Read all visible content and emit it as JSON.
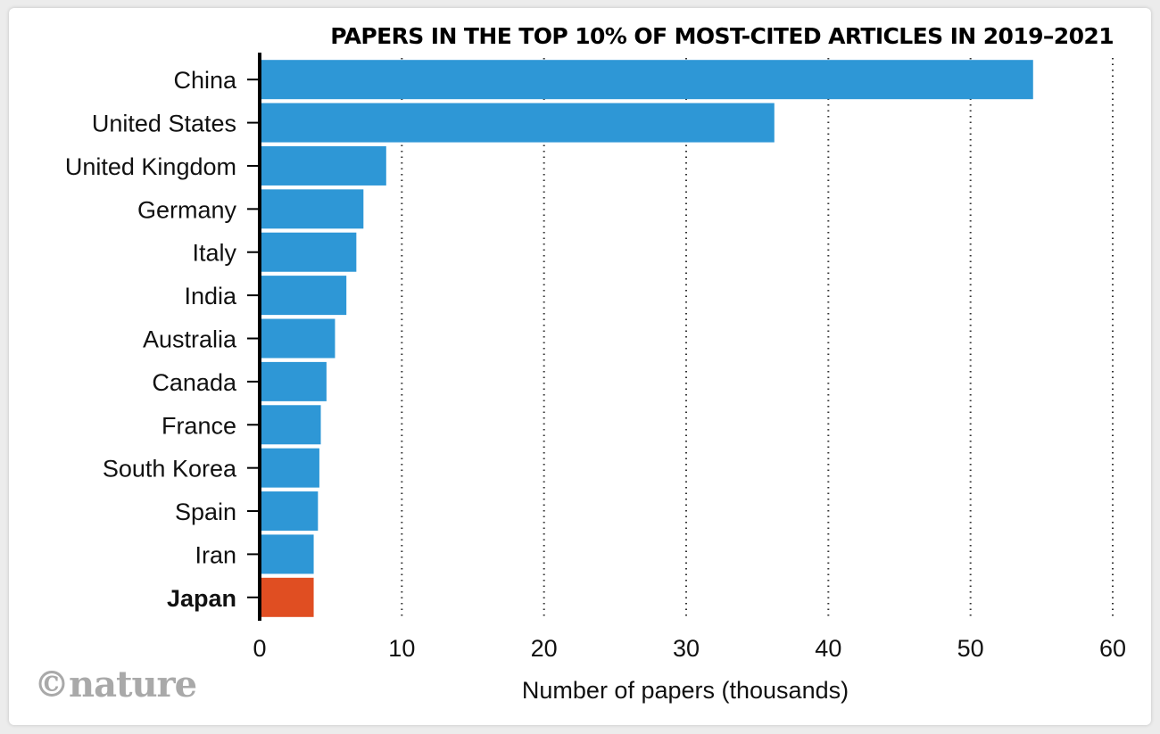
{
  "source_logo": "©nature",
  "chart_data": {
    "type": "bar",
    "orientation": "horizontal",
    "title": "PAPERS IN THE TOP 10% OF MOST-CITED ARTICLES IN 2019–2021",
    "xlabel": "Number of papers (thousands)",
    "ylabel": "",
    "xlim": [
      0,
      60
    ],
    "xticks": [
      0,
      10,
      20,
      30,
      40,
      50,
      60
    ],
    "grid": "vertical dotted",
    "categories": [
      "China",
      "United States",
      "United Kingdom",
      "Germany",
      "Italy",
      "India",
      "Australia",
      "Canada",
      "France",
      "South Korea",
      "Spain",
      "Iran",
      "Japan"
    ],
    "values": [
      54.4,
      36.2,
      8.9,
      7.3,
      6.8,
      6.1,
      5.3,
      4.7,
      4.3,
      4.2,
      4.1,
      3.8,
      3.8
    ],
    "highlight": "Japan",
    "colors": {
      "bar": "#2e97d6",
      "highlight": "#e04e22",
      "grid": "#333333",
      "axis": "#000000"
    }
  }
}
